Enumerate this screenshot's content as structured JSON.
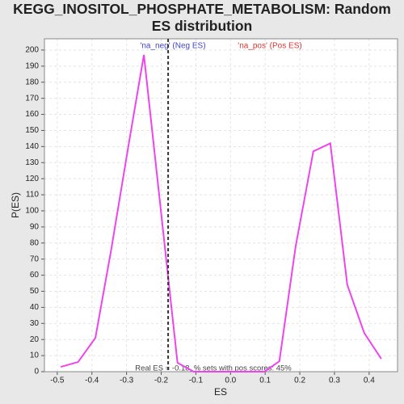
{
  "chart_data": {
    "type": "line",
    "title": "KEGG_INOSITOL_PHOSPHATE_METABOLISM: Random ES distribution",
    "xlabel": "ES",
    "ylabel": "P(ES)",
    "legend_neg": "'na_neg' (Neg ES)",
    "legend_pos": "'na_pos' (Pos ES)",
    "annotation": "Real ES = -0.18, % sets with pos scores: 45%",
    "real_es": -0.18,
    "xlim": [
      -0.537,
      0.482
    ],
    "ylim": [
      0,
      207
    ],
    "xticks": [
      -0.5,
      -0.4,
      -0.3,
      -0.2,
      -0.1,
      {
        "value": 0,
        "label": "0.0"
      },
      0.1,
      0.2,
      0.3,
      0.4
    ],
    "yticks": [
      0,
      10,
      20,
      30,
      40,
      50,
      60,
      70,
      80,
      90,
      100,
      110,
      120,
      130,
      140,
      150,
      160,
      170,
      180,
      190,
      200
    ],
    "grid": true,
    "series": [
      {
        "color": "#ee44ee",
        "x": [
          -0.49,
          -0.44,
          -0.39,
          -0.345,
          -0.295,
          -0.25,
          -0.153,
          -0.106,
          0.098,
          0.141,
          0.188,
          0.239,
          0.288,
          0.337,
          0.386,
          0.435
        ],
        "values": [
          3,
          6,
          21,
          75,
          140,
          197,
          5.5,
          0,
          0,
          6.5,
          78,
          137,
          142,
          54,
          24,
          8
        ]
      }
    ]
  }
}
